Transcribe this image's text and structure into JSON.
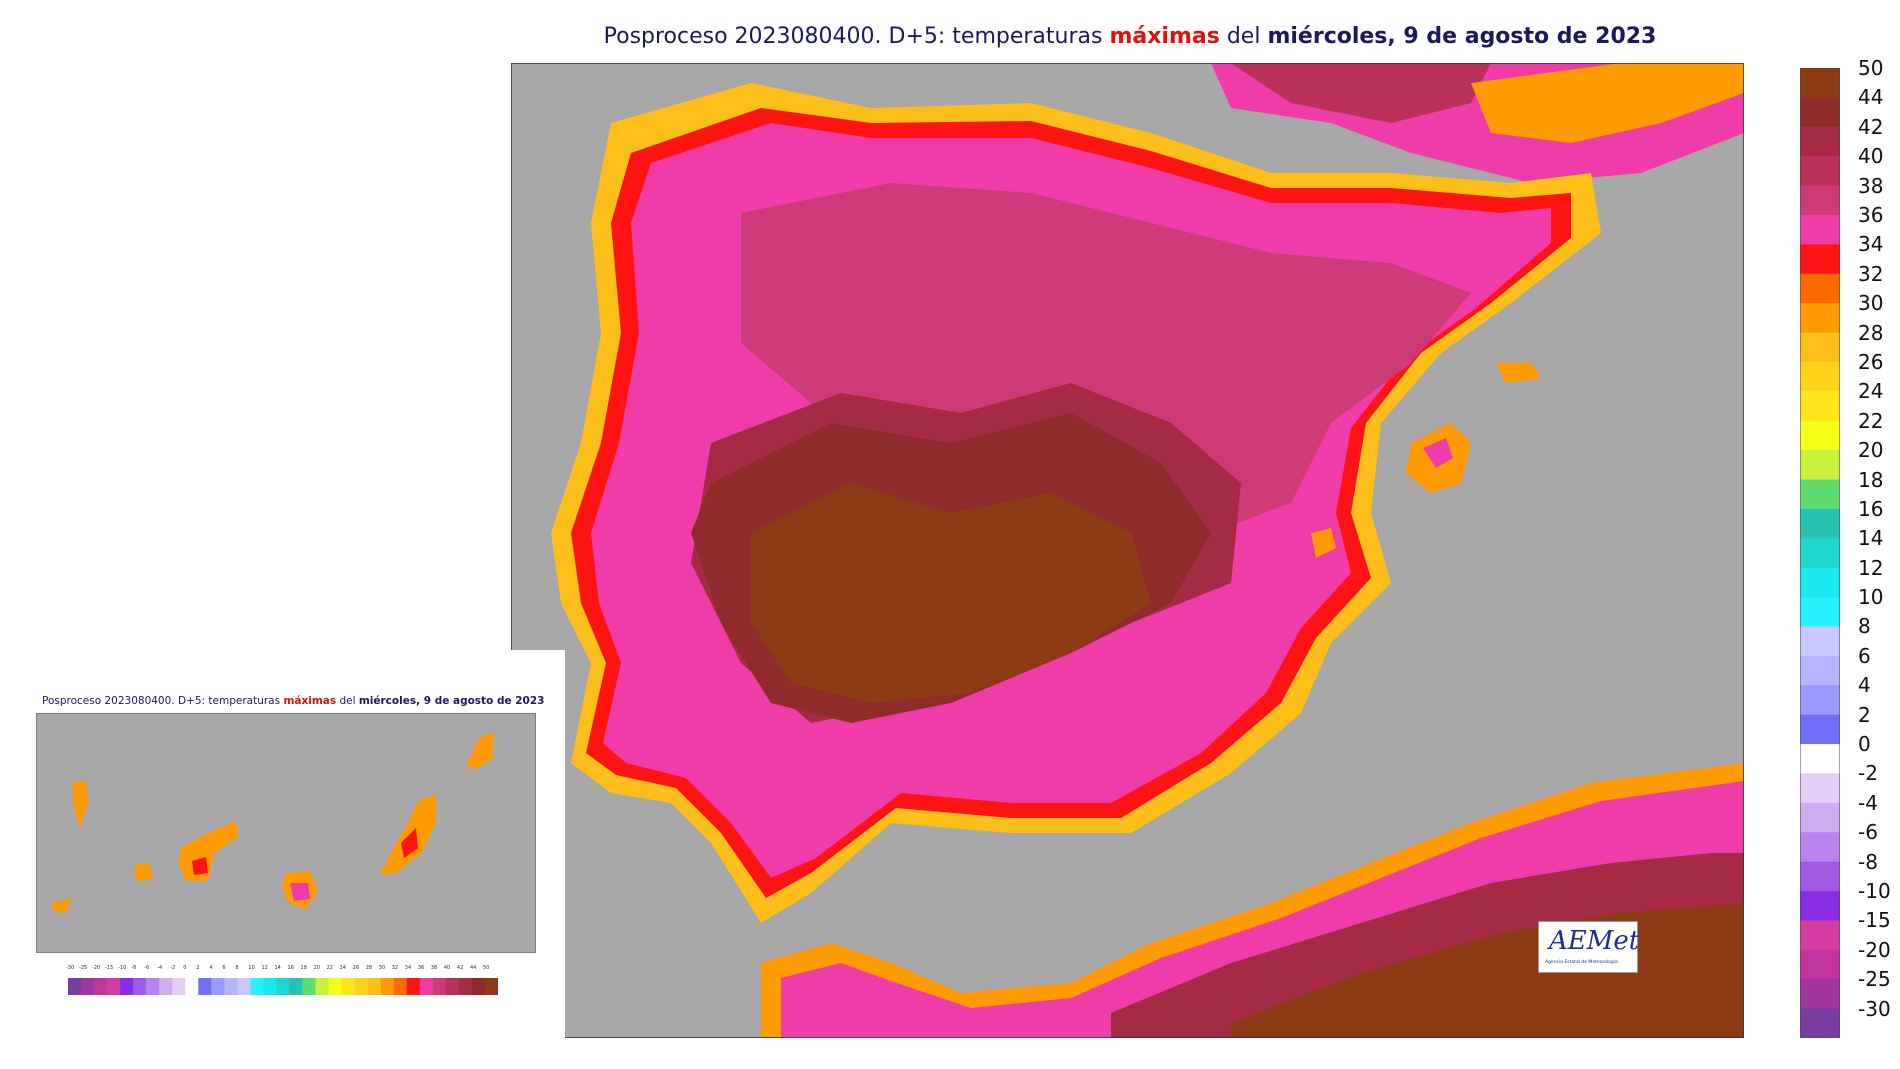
{
  "title": {
    "prefix": "Posproceso 2023080400. D+5: temperaturas ",
    "highlight": "máximas",
    "middle": " del ",
    "bold_day": "miércoles",
    "suffix": ", 9 de agosto de 2023"
  },
  "legend": {
    "labels": [
      "50",
      "44",
      "42",
      "40",
      "38",
      "36",
      "34",
      "32",
      "30",
      "28",
      "26",
      "24",
      "22",
      "20",
      "18",
      "16",
      "14",
      "12",
      "10",
      "8",
      "6",
      "4",
      "2",
      "0",
      "-2",
      "-4",
      "-6",
      "-8",
      "-10",
      "-15",
      "-20",
      "-25",
      "-30"
    ],
    "colors": [
      "#8b3a14",
      "#8f2a2a",
      "#a52a44",
      "#b9325a",
      "#cc3a78",
      "#ef3ca8",
      "#ff1414",
      "#ff6a00",
      "#ff9a00",
      "#ffbf1a",
      "#ffd21a",
      "#ffe61a",
      "#f5ff1a",
      "#c8f03c",
      "#5ddc6e",
      "#29c2b0",
      "#1fd6cf",
      "#1ae8ef",
      "#28f0ff",
      "#c8c8ff",
      "#b4b4ff",
      "#9a9aff",
      "#6f6ff7",
      "#ffffff",
      "#e6cdf5",
      "#d2aaf0",
      "#b982ec",
      "#a05ae6",
      "#8a2ee6",
      "#d23ca0",
      "#c0369e",
      "#a0369e",
      "#7a3ca0"
    ]
  },
  "inset": {
    "title": {
      "prefix": "Posproceso 2023080400. D+5: temperaturas ",
      "highlight": "máximas",
      "middle": " del ",
      "bold_day": "miércoles",
      "suffix": ", 9 de agosto de 2023"
    },
    "tick_labels": [
      "-30",
      "-25",
      "-20",
      "-15",
      "-10",
      "-8",
      "-6",
      "-4",
      "-2",
      "0",
      "2",
      "4",
      "6",
      "8",
      "10",
      "12",
      "14",
      "16",
      "18",
      "20",
      "22",
      "24",
      "26",
      "28",
      "30",
      "32",
      "34",
      "36",
      "38",
      "40",
      "42",
      "44",
      "50"
    ]
  },
  "logo": {
    "name": "AEMet",
    "tagline": "Agencia Estatal de Meteorología"
  },
  "colors": {
    "sea": "#a8a8a8",
    "hot_core": "#8b3a14",
    "very_hot": "#c73a6a",
    "hot": "#ef3ca8",
    "warm_edge": "#ff1414",
    "coast": "#ff9a00",
    "cool_coast": "#ffd21a"
  }
}
